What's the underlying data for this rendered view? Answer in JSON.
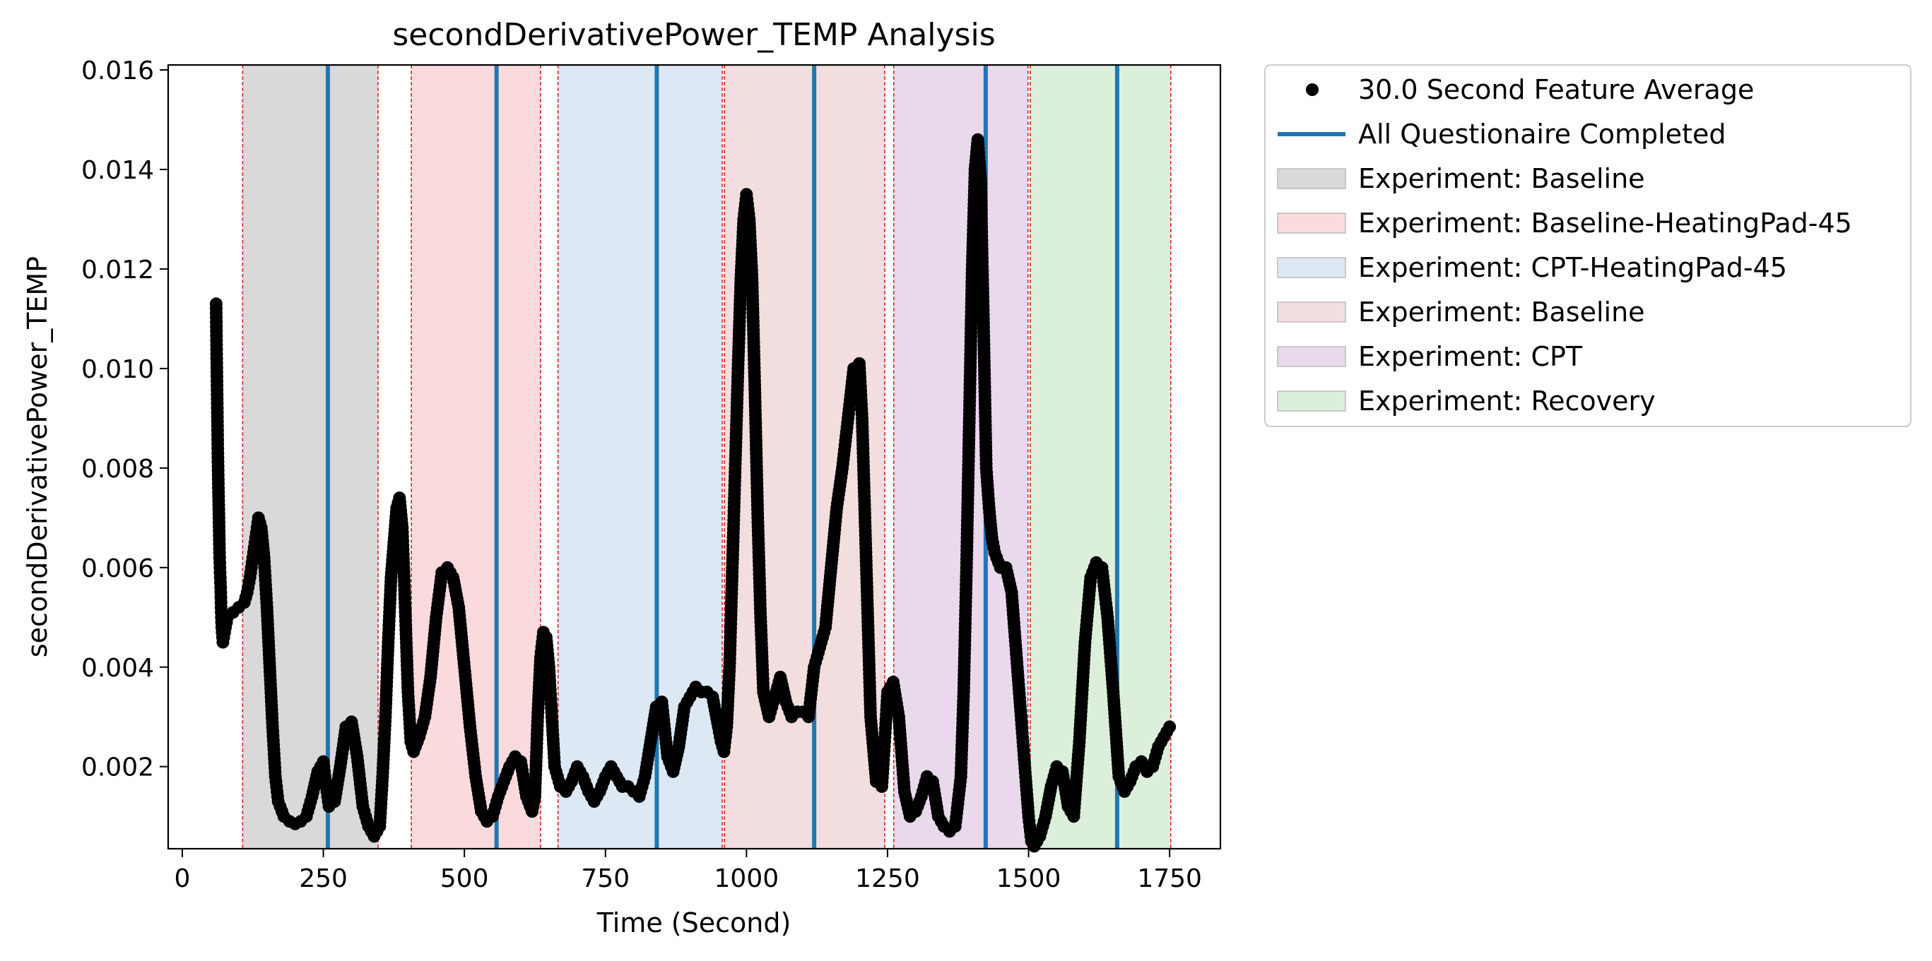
{
  "chart_data": {
    "type": "scatter",
    "title": "secondDerivativePower_TEMP Analysis",
    "xlabel": "Time (Second)",
    "ylabel": "secondDerivativePower_TEMP",
    "xlim": [
      -25,
      1840
    ],
    "ylim": [
      0.00035,
      0.0161
    ],
    "xticks": [
      {
        "value": 0,
        "label": "0"
      },
      {
        "value": 250,
        "label": "250"
      },
      {
        "value": 500,
        "label": "500"
      },
      {
        "value": 750,
        "label": "750"
      },
      {
        "value": 1000,
        "label": "1000"
      },
      {
        "value": 1250,
        "label": "1250"
      },
      {
        "value": 1500,
        "label": "1500"
      },
      {
        "value": 1750,
        "label": "1750"
      }
    ],
    "yticks": [
      {
        "value": 0.002,
        "label": "0.002"
      },
      {
        "value": 0.004,
        "label": "0.004"
      },
      {
        "value": 0.006,
        "label": "0.006"
      },
      {
        "value": 0.008,
        "label": "0.008"
      },
      {
        "value": 0.01,
        "label": "0.01"
      },
      {
        "value": 0.012,
        "label": "0.012"
      },
      {
        "value": 0.014,
        "label": "0.014"
      },
      {
        "value": 0.016,
        "label": "0.016"
      }
    ],
    "ytick_labels_display": [
      "0.002",
      "0.004",
      "0.006",
      "0.008",
      "0.010",
      "0.012",
      "0.014",
      "0.016"
    ],
    "legend_placement": "outside upper right",
    "series": [
      {
        "name": "30.0 Second Feature Average",
        "kind": "scatter",
        "color": "#000000",
        "points": [
          [
            60,
            0.0113
          ],
          [
            61,
            0.0102
          ],
          [
            62,
            0.0093
          ],
          [
            63,
            0.0083
          ],
          [
            64,
            0.0076
          ],
          [
            65,
            0.007
          ],
          [
            66,
            0.0063
          ],
          [
            67,
            0.0059
          ],
          [
            68,
            0.0056
          ],
          [
            69,
            0.0051
          ],
          [
            70,
            0.0048
          ],
          [
            72,
            0.0045
          ],
          [
            75,
            0.0047
          ],
          [
            80,
            0.005
          ],
          [
            90,
            0.0051
          ],
          [
            100,
            0.0052
          ],
          [
            110,
            0.0053
          ],
          [
            115,
            0.0055
          ],
          [
            120,
            0.0058
          ],
          [
            125,
            0.0062
          ],
          [
            130,
            0.0066
          ],
          [
            135,
            0.007
          ],
          [
            140,
            0.0068
          ],
          [
            145,
            0.0062
          ],
          [
            150,
            0.0052
          ],
          [
            155,
            0.004
          ],
          [
            160,
            0.0028
          ],
          [
            165,
            0.0018
          ],
          [
            170,
            0.0013
          ],
          [
            180,
            0.001
          ],
          [
            190,
            0.0009
          ],
          [
            200,
            0.00085
          ],
          [
            210,
            0.0009
          ],
          [
            220,
            0.001
          ],
          [
            230,
            0.0014
          ],
          [
            240,
            0.0019
          ],
          [
            250,
            0.0021
          ],
          [
            255,
            0.0016
          ],
          [
            260,
            0.0012
          ],
          [
            270,
            0.0013
          ],
          [
            280,
            0.002
          ],
          [
            290,
            0.0028
          ],
          [
            300,
            0.0029
          ],
          [
            310,
            0.0022
          ],
          [
            320,
            0.0012
          ],
          [
            330,
            0.0008
          ],
          [
            340,
            0.0006
          ],
          [
            350,
            0.0008
          ],
          [
            355,
            0.0018
          ],
          [
            360,
            0.003
          ],
          [
            365,
            0.0045
          ],
          [
            370,
            0.0058
          ],
          [
            375,
            0.0065
          ],
          [
            380,
            0.0072
          ],
          [
            385,
            0.0074
          ],
          [
            390,
            0.0068
          ],
          [
            395,
            0.0052
          ],
          [
            400,
            0.0035
          ],
          [
            405,
            0.0025
          ],
          [
            410,
            0.0023
          ],
          [
            420,
            0.0026
          ],
          [
            430,
            0.003
          ],
          [
            440,
            0.0038
          ],
          [
            450,
            0.005
          ],
          [
            460,
            0.0059
          ],
          [
            470,
            0.006
          ],
          [
            480,
            0.0058
          ],
          [
            490,
            0.0052
          ],
          [
            500,
            0.004
          ],
          [
            510,
            0.0028
          ],
          [
            520,
            0.0018
          ],
          [
            530,
            0.0011
          ],
          [
            540,
            0.0009
          ],
          [
            550,
            0.001
          ],
          [
            560,
            0.0014
          ],
          [
            570,
            0.0017
          ],
          [
            580,
            0.002
          ],
          [
            590,
            0.0022
          ],
          [
            600,
            0.0021
          ],
          [
            610,
            0.0014
          ],
          [
            620,
            0.0011
          ],
          [
            625,
            0.0014
          ],
          [
            630,
            0.003
          ],
          [
            635,
            0.0042
          ],
          [
            640,
            0.0047
          ],
          [
            645,
            0.0046
          ],
          [
            650,
            0.004
          ],
          [
            655,
            0.003
          ],
          [
            660,
            0.002
          ],
          [
            670,
            0.0016
          ],
          [
            680,
            0.0015
          ],
          [
            690,
            0.0017
          ],
          [
            700,
            0.002
          ],
          [
            710,
            0.0018
          ],
          [
            720,
            0.0015
          ],
          [
            730,
            0.0013
          ],
          [
            740,
            0.0015
          ],
          [
            750,
            0.0018
          ],
          [
            760,
            0.002
          ],
          [
            770,
            0.0018
          ],
          [
            780,
            0.0016
          ],
          [
            790,
            0.0016
          ],
          [
            800,
            0.0015
          ],
          [
            810,
            0.0014
          ],
          [
            820,
            0.0018
          ],
          [
            830,
            0.0025
          ],
          [
            840,
            0.0032
          ],
          [
            850,
            0.0033
          ],
          [
            860,
            0.0022
          ],
          [
            870,
            0.0019
          ],
          [
            880,
            0.0024
          ],
          [
            890,
            0.0032
          ],
          [
            900,
            0.0034
          ],
          [
            910,
            0.0036
          ],
          [
            920,
            0.0035
          ],
          [
            930,
            0.0035
          ],
          [
            940,
            0.0034
          ],
          [
            950,
            0.0028
          ],
          [
            955,
            0.0025
          ],
          [
            960,
            0.0023
          ],
          [
            965,
            0.0028
          ],
          [
            970,
            0.004
          ],
          [
            975,
            0.006
          ],
          [
            980,
            0.008
          ],
          [
            985,
            0.01
          ],
          [
            990,
            0.0118
          ],
          [
            995,
            0.013
          ],
          [
            1000,
            0.0135
          ],
          [
            1005,
            0.013
          ],
          [
            1010,
            0.0118
          ],
          [
            1015,
            0.0095
          ],
          [
            1020,
            0.007
          ],
          [
            1025,
            0.005
          ],
          [
            1030,
            0.0035
          ],
          [
            1040,
            0.003
          ],
          [
            1050,
            0.0034
          ],
          [
            1060,
            0.0038
          ],
          [
            1070,
            0.0033
          ],
          [
            1080,
            0.003
          ],
          [
            1090,
            0.0031
          ],
          [
            1100,
            0.0031
          ],
          [
            1110,
            0.003
          ],
          [
            1120,
            0.004
          ],
          [
            1130,
            0.0044
          ],
          [
            1140,
            0.0048
          ],
          [
            1150,
            0.006
          ],
          [
            1160,
            0.0072
          ],
          [
            1170,
            0.008
          ],
          [
            1180,
            0.009
          ],
          [
            1190,
            0.01
          ],
          [
            1200,
            0.0101
          ],
          [
            1205,
            0.009
          ],
          [
            1210,
            0.007
          ],
          [
            1215,
            0.005
          ],
          [
            1220,
            0.003
          ],
          [
            1230,
            0.0017
          ],
          [
            1240,
            0.0016
          ],
          [
            1245,
            0.0025
          ],
          [
            1250,
            0.0035
          ],
          [
            1260,
            0.0037
          ],
          [
            1270,
            0.003
          ],
          [
            1280,
            0.0015
          ],
          [
            1290,
            0.001
          ],
          [
            1300,
            0.0011
          ],
          [
            1310,
            0.0014
          ],
          [
            1320,
            0.0018
          ],
          [
            1330,
            0.0017
          ],
          [
            1340,
            0.001
          ],
          [
            1350,
            0.0008
          ],
          [
            1360,
            0.0007
          ],
          [
            1370,
            0.0008
          ],
          [
            1380,
            0.0018
          ],
          [
            1385,
            0.0035
          ],
          [
            1390,
            0.006
          ],
          [
            1395,
            0.009
          ],
          [
            1400,
            0.012
          ],
          [
            1405,
            0.014
          ],
          [
            1410,
            0.0146
          ],
          [
            1415,
            0.0138
          ],
          [
            1420,
            0.011
          ],
          [
            1425,
            0.008
          ],
          [
            1430,
            0.0072
          ],
          [
            1435,
            0.0066
          ],
          [
            1440,
            0.0063
          ],
          [
            1450,
            0.006
          ],
          [
            1460,
            0.006
          ],
          [
            1470,
            0.0055
          ],
          [
            1480,
            0.004
          ],
          [
            1490,
            0.0025
          ],
          [
            1500,
            0.001
          ],
          [
            1505,
            0.0005
          ],
          [
            1510,
            0.0004
          ],
          [
            1520,
            0.0006
          ],
          [
            1530,
            0.001
          ],
          [
            1540,
            0.0016
          ],
          [
            1550,
            0.002
          ],
          [
            1560,
            0.0019
          ],
          [
            1570,
            0.0012
          ],
          [
            1580,
            0.001
          ],
          [
            1590,
            0.0025
          ],
          [
            1600,
            0.0045
          ],
          [
            1610,
            0.0058
          ],
          [
            1620,
            0.0061
          ],
          [
            1630,
            0.006
          ],
          [
            1640,
            0.005
          ],
          [
            1650,
            0.0035
          ],
          [
            1660,
            0.0018
          ],
          [
            1670,
            0.0015
          ],
          [
            1680,
            0.0017
          ],
          [
            1690,
            0.002
          ],
          [
            1700,
            0.0021
          ],
          [
            1710,
            0.0019
          ],
          [
            1720,
            0.002
          ],
          [
            1730,
            0.0024
          ],
          [
            1740,
            0.0026
          ],
          [
            1750,
            0.0028
          ]
        ]
      },
      {
        "name": "All Questionaire Completed",
        "kind": "vlines",
        "color": "#1f77b4",
        "x": [
          258,
          557,
          841,
          1120,
          1424,
          1657
        ]
      }
    ],
    "spans": [
      {
        "label": "Experiment: Baseline",
        "color": "#d9d9d9",
        "x0": 107,
        "x1": 347
      },
      {
        "label": "Experiment: Baseline-HeatingPad-45",
        "color": "#fadadd",
        "x0": 406,
        "x1": 635
      },
      {
        "label": "Experiment: CPT-HeatingPad-45",
        "color": "#dce9f4",
        "x0": 666,
        "x1": 957
      },
      {
        "label": "Experiment: Baseline",
        "color": "#f2dede",
        "x0": 961,
        "x1": 1245
      },
      {
        "label": "Experiment: CPT",
        "color": "#ead8ed",
        "x0": 1261,
        "x1": 1499
      },
      {
        "label": "Experiment: Recovery",
        "color": "#dcefdb",
        "x0": 1503,
        "x1": 1752
      }
    ],
    "span_edge_color": "#d62728"
  }
}
